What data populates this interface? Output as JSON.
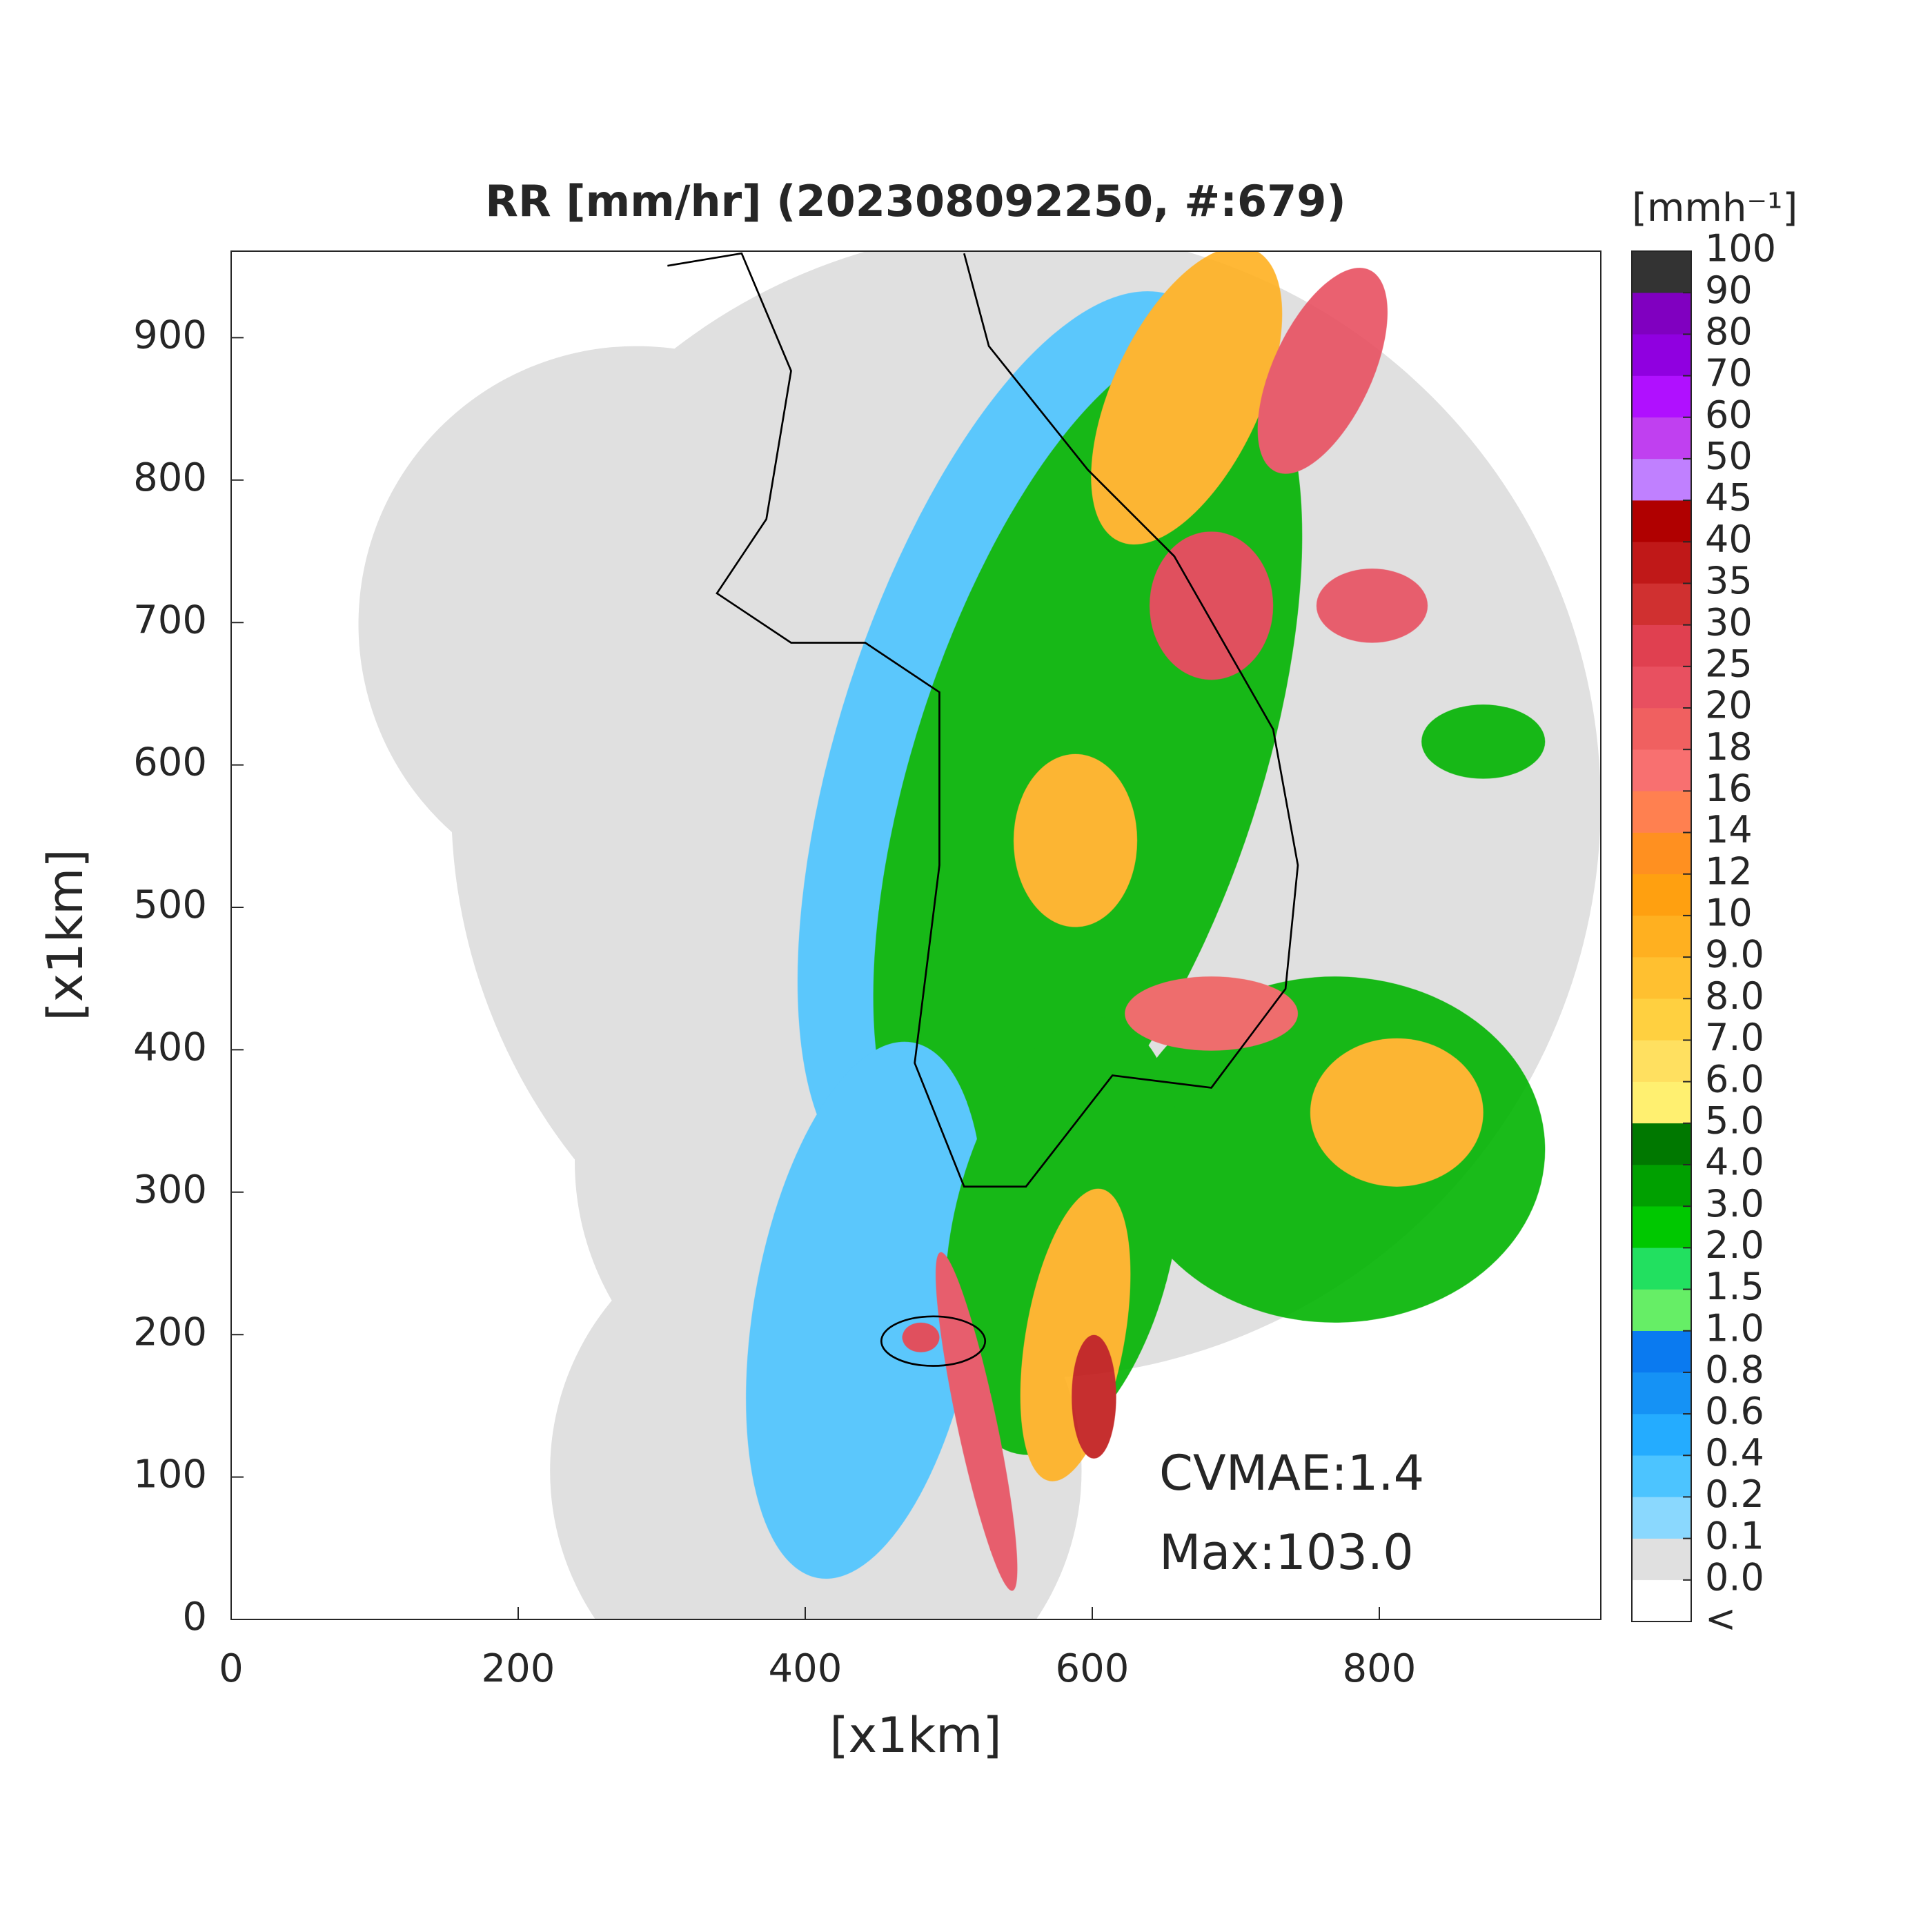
{
  "chart_data": {
    "type": "map",
    "title": "RR [mm/hr] (202308092250, #:679)",
    "xlabel": "[x1km]",
    "ylabel": "[x1km]",
    "xlim": [
      0,
      960
    ],
    "ylim": [
      0,
      960
    ],
    "xticks": [
      0,
      200,
      400,
      600,
      800
    ],
    "yticks": [
      0,
      100,
      200,
      300,
      400,
      500,
      600,
      700,
      800,
      900
    ],
    "annotations": [
      "CVMAE:1.4",
      "Max:103.0"
    ],
    "colorbar": {
      "label": "[mmh⁻¹]",
      "ticks": [
        {
          "value": -1,
          "label": "<"
        },
        {
          "value": 0,
          "label": "0.0"
        },
        0.1,
        0.2,
        0.4,
        0.6,
        0.8,
        {
          "value": 1,
          "label": "1.0"
        },
        1.5,
        {
          "value": 2,
          "label": "2.0"
        },
        {
          "value": 3,
          "label": "3.0"
        },
        {
          "value": 4,
          "label": "4.0"
        },
        {
          "value": 5,
          "label": "5.0"
        },
        {
          "value": 6,
          "label": "6.0"
        },
        {
          "value": 7,
          "label": "7.0"
        },
        {
          "value": 8,
          "label": "8.0"
        },
        {
          "value": 9,
          "label": "9.0"
        },
        10,
        12,
        14,
        16,
        18,
        20,
        25,
        30,
        35,
        40,
        45,
        50,
        60,
        70,
        80,
        90,
        100
      ],
      "colors": [
        "#ffffff",
        "#e0e0e0",
        "#8ad8fe",
        "#4cc4ff",
        "#24acff",
        "#1592f5",
        "#0a7af0",
        "#66ee66",
        "#22e060",
        "#00c800",
        "#00a000",
        "#007800",
        "#fff070",
        "#ffe060",
        "#ffd040",
        "#ffc030",
        "#ffb020",
        "#ffa010",
        "#ff9020",
        "#ff8050",
        "#f87070",
        "#f06060",
        "#e85060",
        "#e04050",
        "#d03030",
        "#c01818",
        "#b00000",
        "#c080ff",
        "#c040f0",
        "#b010ff",
        "#9000e0",
        "#8000c0",
        "#333333"
      ]
    }
  }
}
